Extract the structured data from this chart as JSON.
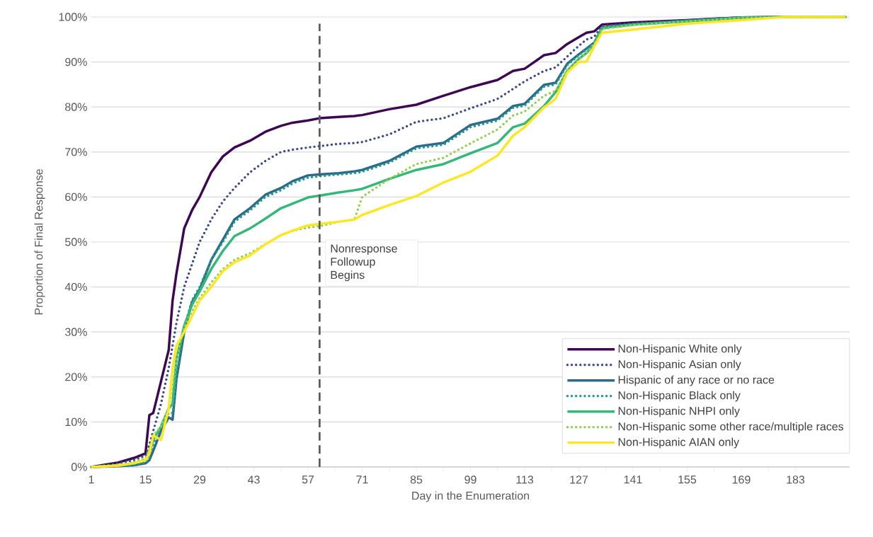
{
  "chart_data": {
    "type": "line",
    "xlabel": "Day in the Enumeration",
    "ylabel": "Proportion of Final Response",
    "x": [
      1,
      8,
      12,
      15,
      16,
      17,
      19,
      21,
      22,
      23,
      25,
      27,
      29,
      32,
      35,
      38,
      42,
      46,
      50,
      53,
      57,
      60,
      65,
      69,
      71,
      78,
      85,
      92,
      99,
      106,
      110,
      113,
      118,
      121,
      124,
      127,
      129,
      131,
      133,
      141,
      155,
      169,
      180,
      196
    ],
    "series": [
      {
        "name": "Non-Hispanic White only",
        "color": "#3e0751",
        "line_style": "solid",
        "values": [
          0,
          1,
          2,
          3,
          11.5,
          12,
          19,
          26,
          37,
          43,
          53,
          57,
          60,
          65.5,
          69,
          71,
          72.5,
          74.5,
          75.8,
          76.5,
          77,
          77.5,
          77.8,
          78,
          78.2,
          79.5,
          80.5,
          82.5,
          84.4,
          86,
          88,
          88.5,
          91.5,
          92,
          94,
          95.5,
          96.5,
          96.8,
          98.3,
          98.8,
          99.3,
          99.9,
          100,
          100
        ]
      },
      {
        "name": "Non-Hispanic Asian only",
        "color": "#3b4a8a",
        "line_style": "dotted",
        "values": [
          0,
          0.8,
          1.5,
          2.5,
          5,
          8,
          14,
          22,
          27,
          32,
          40,
          45,
          50,
          55,
          59,
          62,
          65.5,
          68,
          70,
          70.5,
          71,
          71.3,
          71.8,
          72,
          72.2,
          73.9,
          76.7,
          77.5,
          79.7,
          81.8,
          84,
          85.7,
          88,
          88.8,
          91.2,
          93.6,
          95,
          95.6,
          98,
          98.6,
          99.2,
          99.9,
          100,
          100
        ]
      },
      {
        "name": "Hispanic of any race or no race",
        "color": "#2d6a8a",
        "line_style": "solid",
        "values": [
          0,
          0.2,
          0.4,
          0.8,
          1.5,
          3.6,
          8,
          11,
          10.5,
          19.5,
          30,
          36.6,
          39.5,
          46,
          50.5,
          55,
          57.5,
          60.5,
          62,
          63.5,
          64.8,
          65,
          65.3,
          65.7,
          66,
          68,
          71.2,
          72,
          76,
          77.4,
          80.2,
          80.7,
          84.9,
          85.4,
          89.6,
          91.7,
          93,
          94.3,
          97.6,
          98.4,
          99.2,
          99.9,
          100,
          100
        ]
      },
      {
        "name": "Non-Hispanic Black only",
        "color": "#1f9a8a",
        "line_style": "dotted",
        "values": [
          0,
          0.3,
          0.5,
          1,
          2,
          5,
          9,
          12,
          12,
          20,
          31,
          37,
          40,
          46,
          50,
          54.5,
          57,
          60,
          61.5,
          63,
          64.3,
          64.6,
          65,
          65.3,
          65.6,
          67.6,
          70.8,
          71.6,
          75.5,
          77,
          79.8,
          80.3,
          84.5,
          85,
          89.3,
          91.5,
          92.8,
          94.2,
          97.5,
          98.3,
          99.1,
          99.9,
          100,
          100
        ]
      },
      {
        "name": "Non-Hispanic NHPI only",
        "color": "#35b779",
        "line_style": "solid",
        "values": [
          0,
          0.3,
          0.8,
          1.5,
          3,
          6,
          9,
          13,
          14,
          24,
          31.4,
          36,
          39,
          44,
          48,
          51.3,
          53,
          55.2,
          57.5,
          58.5,
          59.9,
          60.3,
          61,
          61.5,
          61.8,
          64,
          66,
          67.3,
          69.7,
          72,
          75.5,
          76.3,
          80.2,
          83.3,
          88,
          90.7,
          92,
          94,
          97.5,
          98.3,
          99,
          99.8,
          100,
          100
        ]
      },
      {
        "name": "Non-Hispanic some other race/multiple races",
        "color": "#8fd14f",
        "line_style": "dotted",
        "values": [
          0,
          0.5,
          1,
          2,
          4,
          7,
          9,
          13,
          18,
          24,
          31,
          34.5,
          37.5,
          41,
          44,
          46,
          47.5,
          49.5,
          51.5,
          52.5,
          53.2,
          53.5,
          54.5,
          55,
          60,
          64,
          67.3,
          68.7,
          71.9,
          75,
          78.1,
          79,
          82.5,
          83.6,
          88,
          90.5,
          92,
          94,
          97.3,
          98.2,
          99,
          99.8,
          100,
          100
        ]
      },
      {
        "name": "Non-Hispanic AIAN only",
        "color": "#fde725",
        "line_style": "solid",
        "values": [
          0,
          0.3,
          0.8,
          1.5,
          3,
          7,
          6,
          13,
          22,
          27,
          30,
          33.5,
          37,
          40,
          43.5,
          45.5,
          47,
          49.5,
          51.5,
          52.5,
          53.7,
          54,
          54.5,
          55,
          56,
          58.2,
          60.2,
          63.2,
          65.6,
          69.2,
          73.6,
          75.5,
          79.9,
          81.8,
          87.6,
          90,
          90.1,
          93.5,
          96.5,
          97.2,
          98.5,
          99.3,
          100,
          100
        ]
      }
    ],
    "xlim": [
      1,
      197
    ],
    "ylim": [
      0,
      100
    ],
    "xticks": [
      1,
      15,
      29,
      43,
      57,
      71,
      85,
      99,
      113,
      127,
      141,
      155,
      169,
      183
    ],
    "yticks": [
      {
        "value": 0,
        "label": "0%"
      },
      {
        "value": 10,
        "label": "10%"
      },
      {
        "value": 20,
        "label": "20%"
      },
      {
        "value": 30,
        "label": "30%"
      },
      {
        "value": 40,
        "label": "40%"
      },
      {
        "value": 50,
        "label": "50%"
      },
      {
        "value": 60,
        "label": "60%"
      },
      {
        "value": 70,
        "label": "70%"
      },
      {
        "value": 80,
        "label": "80%"
      },
      {
        "value": 90,
        "label": "90%"
      },
      {
        "value": 100,
        "label": "100%"
      }
    ],
    "ref_lines": [
      {
        "axis": "x",
        "value": 60,
        "label": "Nonresponse Followup Begins",
        "color": "#595959",
        "line_style": "dashed"
      }
    ],
    "grid": "y",
    "legend": "bottom right",
    "marker": "none"
  }
}
